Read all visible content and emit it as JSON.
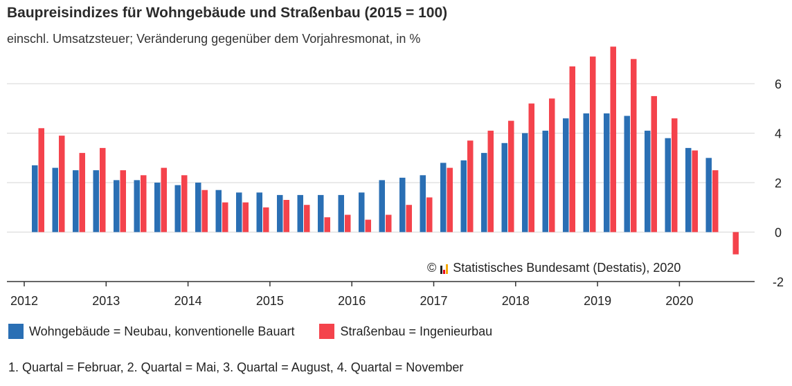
{
  "title": "Baupreisindizes für Wohngebäude und Straßenbau (2015 = 100)",
  "subtitle": "einschl. Umsatzsteuer; Veränderung gegenüber dem Vorjahresmonat, in %",
  "copyright": {
    "symbol": "©",
    "text": "Statistisches Bundesamt (Destatis), 2020",
    "icon": "destatis-logo-icon"
  },
  "legend": [
    {
      "label": "Wohngebäude = Neubau, konventionelle Bauart",
      "color": "#2a6fb4"
    },
    {
      "label": "Straßenbau = Ingenieurbau",
      "color": "#f4434c"
    }
  ],
  "footnote": "1. Quartal = Februar, 2. Quartal = Mai, 3. Quartal = August, 4. Quartal = November",
  "chart_data": {
    "type": "bar",
    "x_tick_labels": [
      "2012",
      "2013",
      "2014",
      "2015",
      "2016",
      "2017",
      "2018",
      "2019",
      "2020"
    ],
    "y_ticks": [
      6,
      4,
      2,
      0,
      -2
    ],
    "ylim": [
      -2,
      7.5
    ],
    "y_axis_position": "right",
    "grid": true,
    "legend_position": "bottom",
    "categories": [
      "2012 Q1",
      "2012 Q2",
      "2012 Q3",
      "2012 Q4",
      "2013 Q1",
      "2013 Q2",
      "2013 Q3",
      "2013 Q4",
      "2014 Q1",
      "2014 Q2",
      "2014 Q3",
      "2014 Q4",
      "2015 Q1",
      "2015 Q2",
      "2015 Q3",
      "2015 Q4",
      "2016 Q1",
      "2016 Q2",
      "2016 Q3",
      "2016 Q4",
      "2017 Q1",
      "2017 Q2",
      "2017 Q3",
      "2017 Q4",
      "2018 Q1",
      "2018 Q2",
      "2018 Q3",
      "2018 Q4",
      "2019 Q1",
      "2019 Q2",
      "2019 Q3",
      "2019 Q4",
      "2020 Q1",
      "2020 Q2",
      "2020 Q3",
      "2020 Q4"
    ],
    "series": [
      {
        "name": "Wohngebäude = Neubau, konventionelle Bauart",
        "color": "#2a6fb4",
        "values": [
          2.7,
          2.6,
          2.5,
          2.5,
          2.1,
          2.1,
          2.0,
          1.9,
          2.0,
          1.7,
          1.6,
          1.6,
          1.5,
          1.5,
          1.5,
          1.5,
          1.6,
          2.1,
          2.2,
          2.3,
          2.8,
          2.9,
          3.2,
          3.6,
          4.0,
          4.1,
          4.6,
          4.8,
          4.8,
          4.7,
          4.1,
          3.8,
          3.4,
          3.0,
          null,
          null
        ]
      },
      {
        "name": "Straßenbau = Ingenieurbau",
        "color": "#f4434c",
        "values": [
          4.2,
          3.9,
          3.2,
          3.4,
          2.5,
          2.3,
          2.6,
          2.3,
          1.7,
          1.2,
          1.2,
          1.0,
          1.3,
          1.1,
          0.6,
          0.7,
          0.5,
          0.7,
          1.1,
          1.4,
          2.6,
          3.7,
          4.1,
          4.5,
          5.2,
          5.4,
          6.7,
          7.1,
          7.5,
          7.0,
          5.5,
          4.6,
          3.3,
          2.5,
          -0.9,
          null
        ]
      }
    ]
  }
}
